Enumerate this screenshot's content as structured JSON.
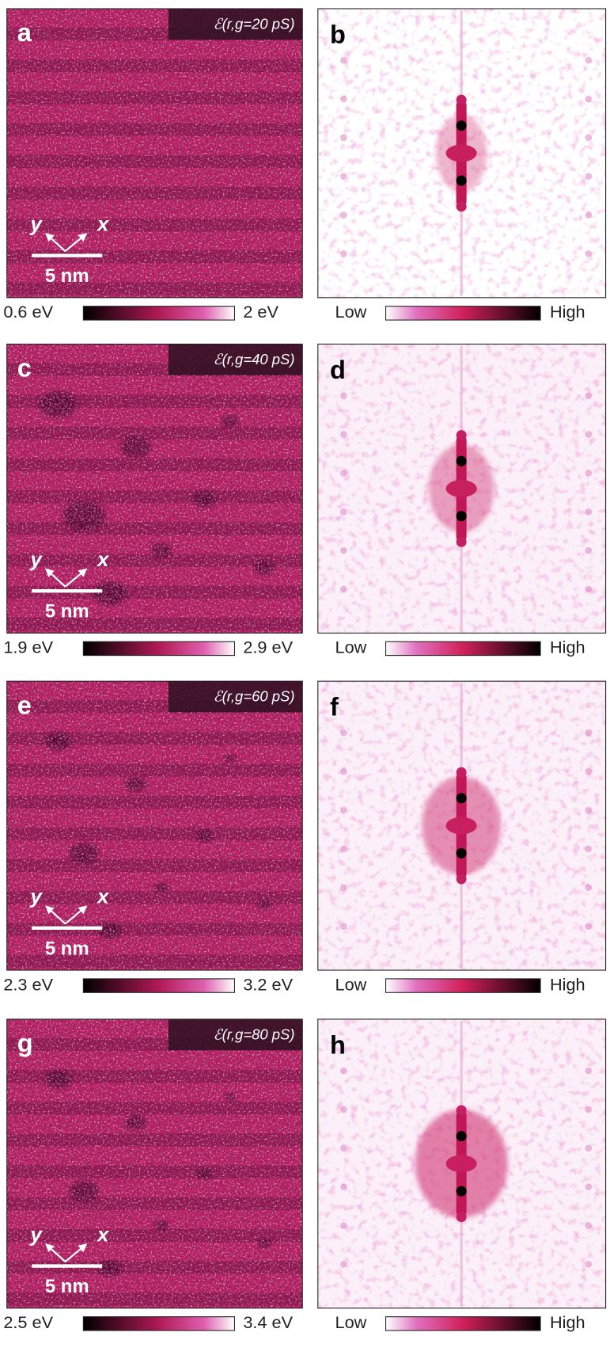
{
  "panels": [
    {
      "map_label": "a",
      "annotation": "ℰ(r,g=20 pS)",
      "axis_y": "y",
      "axis_x": "x",
      "scale_bar": "5 nm",
      "colorbar_min": "0.6 eV",
      "colorbar_max": "2 eV",
      "fft_label": "b",
      "fft_low": "Low",
      "fft_high": "High"
    },
    {
      "map_label": "c",
      "annotation": "ℰ(r,g=40 pS)",
      "axis_y": "y",
      "axis_x": "x",
      "scale_bar": "5 nm",
      "colorbar_min": "1.9 eV",
      "colorbar_max": "2.9 eV",
      "fft_label": "d",
      "fft_low": "Low",
      "fft_high": "High"
    },
    {
      "map_label": "e",
      "annotation": "ℰ(r,g=60 pS)",
      "axis_y": "y",
      "axis_x": "x",
      "scale_bar": "5 nm",
      "colorbar_min": "2.3 eV",
      "colorbar_max": "3.2 eV",
      "fft_label": "f",
      "fft_low": "Low",
      "fft_high": "High"
    },
    {
      "map_label": "g",
      "annotation": "ℰ(r,g=80 pS)",
      "axis_y": "y",
      "axis_x": "x",
      "scale_bar": "5 nm",
      "colorbar_min": "2.5 eV",
      "colorbar_max": "3.4 eV",
      "fft_label": "h",
      "fft_low": "Low",
      "fft_high": "High"
    }
  ]
}
